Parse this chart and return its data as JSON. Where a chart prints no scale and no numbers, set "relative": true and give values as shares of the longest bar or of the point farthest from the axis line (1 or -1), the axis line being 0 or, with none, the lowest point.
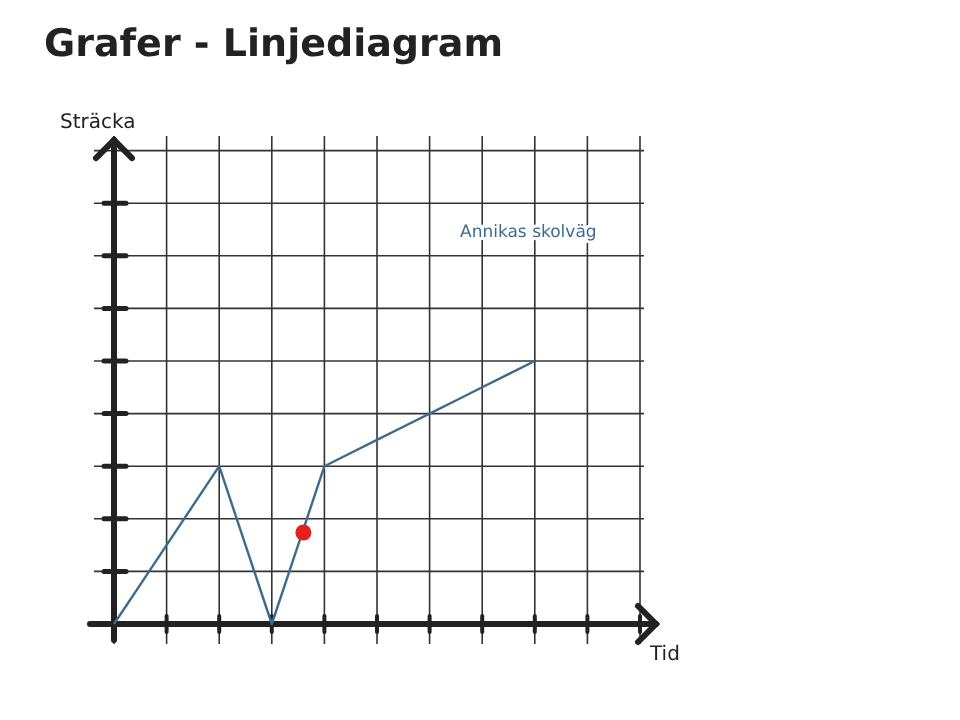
{
  "chart_data": {
    "type": "line",
    "title": "Grafer - Linjediagram",
    "annotations": [
      "Sträcka",
      "Tid"
    ],
    "relative": true,
    "grid": true,
    "categories": [
      null,
      null,
      null,
      null,
      null,
      null,
      null,
      null,
      null,
      null,
      null,
      null,
      null,
      null,
      null,
      null,
      null
    ],
    "series": [
      {
        "name": "Annikas skolväg",
        "color": "#3d6b8c",
        "values": [
          0,
          0.15,
          0.3,
          0.45,
          0.6,
          0.3,
          0,
          0.3,
          0.6,
          0.65,
          0.7,
          0.75,
          0.8,
          0.85,
          0.9,
          0.95,
          1
        ]
      }
    ]
  }
}
